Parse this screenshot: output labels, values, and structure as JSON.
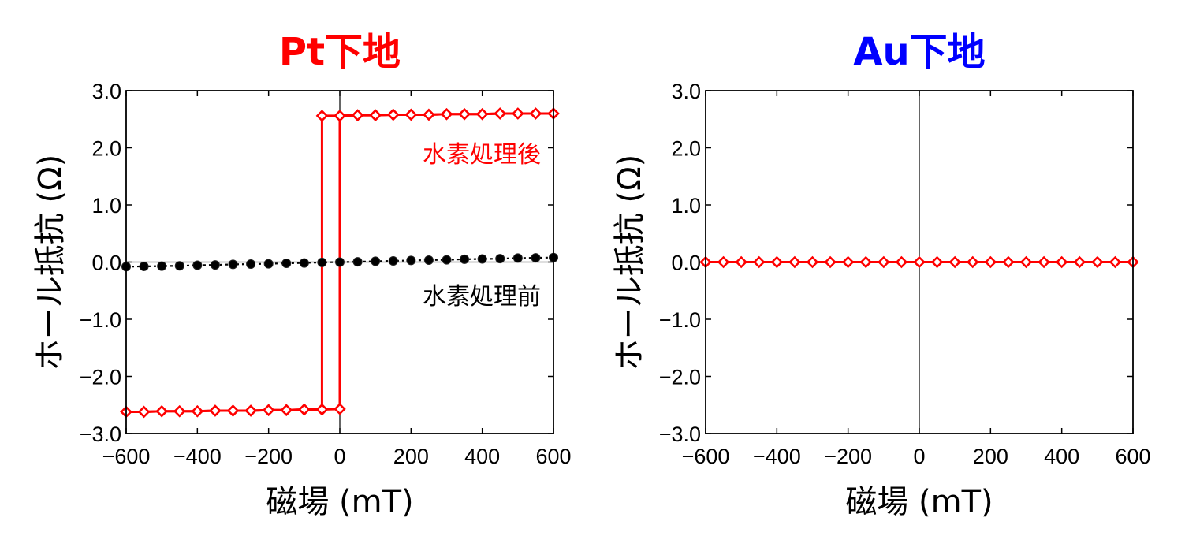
{
  "chart_data": [
    {
      "type": "line",
      "title": "Pt下地",
      "title_color": "#ff0000",
      "xlabel": "磁場 (mT)",
      "ylabel": "ホール抵抗 (Ω)",
      "xlim": [
        -600,
        600
      ],
      "ylim": [
        -3.0,
        3.0
      ],
      "xticks": [
        -600,
        -400,
        -200,
        0,
        200,
        400,
        600
      ],
      "xtick_labels": [
        "−600",
        "−400",
        "−200",
        "0",
        "200",
        "400",
        "600"
      ],
      "yticks": [
        3.0,
        2.0,
        1.0,
        0.0,
        -1.0,
        -2.0,
        -3.0
      ],
      "ytick_labels": [
        "3.0",
        "2.0",
        "1.0",
        "0.0",
        "−1.0",
        "−2.0",
        "−3.0"
      ],
      "grid": false,
      "annotations": [
        {
          "text": "水素処理後",
          "color": "#ff0000"
        },
        {
          "text": "水素処理前",
          "color": "#000000"
        }
      ],
      "series": [
        {
          "color": "#ff0000",
          "marker": "diamond-open",
          "sweep_up": {
            "x": [
              -600,
              -550,
              -500,
              -450,
              -400,
              -350,
              -300,
              -250,
              -200,
              -150,
              -100,
              -50,
              0,
              0,
              50,
              100,
              150,
              200,
              250,
              300,
              350,
              400,
              450,
              500,
              550,
              600
            ],
            "y": [
              -2.62,
              -2.62,
              -2.61,
              -2.61,
              -2.61,
              -2.6,
              -2.6,
              -2.6,
              -2.59,
              -2.59,
              -2.58,
              -2.58,
              -2.57,
              2.56,
              2.57,
              2.57,
              2.58,
              2.58,
              2.58,
              2.59,
              2.59,
              2.59,
              2.6,
              2.6,
              2.6,
              2.6
            ]
          },
          "sweep_down": {
            "x": [
              600,
              550,
              500,
              450,
              400,
              350,
              300,
              250,
              200,
              150,
              100,
              50,
              0,
              -50,
              -50,
              -100,
              -150,
              -200,
              -250,
              -300,
              -350,
              -400,
              -450,
              -500,
              -550,
              -600
            ],
            "y": [
              2.6,
              2.6,
              2.6,
              2.6,
              2.59,
              2.59,
              2.59,
              2.58,
              2.58,
              2.58,
              2.57,
              2.57,
              2.56,
              2.56,
              -2.58,
              -2.58,
              -2.59,
              -2.59,
              -2.6,
              -2.6,
              -2.6,
              -2.61,
              -2.61,
              -2.61,
              -2.62,
              -2.62
            ]
          }
        },
        {
          "color": "#000000",
          "marker": "circle-filled",
          "line": "dotted",
          "x": [
            -600,
            -550,
            -500,
            -450,
            -400,
            -350,
            -300,
            -250,
            -200,
            -150,
            -100,
            -50,
            0,
            50,
            100,
            150,
            200,
            250,
            300,
            350,
            400,
            450,
            500,
            550,
            600
          ],
          "y": [
            -0.08,
            -0.075,
            -0.07,
            -0.065,
            -0.055,
            -0.05,
            -0.04,
            -0.035,
            -0.03,
            -0.02,
            -0.015,
            -0.005,
            0.0,
            0.005,
            0.015,
            0.02,
            0.03,
            0.035,
            0.04,
            0.05,
            0.055,
            0.06,
            0.07,
            0.075,
            0.08
          ]
        }
      ]
    },
    {
      "type": "line",
      "title": "Au下地",
      "title_color": "#0000ff",
      "xlabel": "磁場 (mT)",
      "ylabel": "ホール抵抗 (Ω)",
      "xlim": [
        -600,
        600
      ],
      "ylim": [
        -3.0,
        3.0
      ],
      "xticks": [
        -600,
        -400,
        -200,
        0,
        200,
        400,
        600
      ],
      "xtick_labels": [
        "−600",
        "−400",
        "−200",
        "0",
        "200",
        "400",
        "600"
      ],
      "yticks": [
        3.0,
        2.0,
        1.0,
        0.0,
        -1.0,
        -2.0,
        -3.0
      ],
      "ytick_labels": [
        "3.0",
        "2.0",
        "1.0",
        "0.0",
        "−1.0",
        "−2.0",
        "−3.0"
      ],
      "grid": false,
      "series": [
        {
          "color": "#ff0000",
          "marker": "diamond-open",
          "x": [
            -600,
            -550,
            -500,
            -450,
            -400,
            -350,
            -300,
            -250,
            -200,
            -150,
            -100,
            -50,
            0,
            50,
            100,
            150,
            200,
            250,
            300,
            350,
            400,
            450,
            500,
            550,
            600
          ],
          "y": [
            0,
            0,
            0,
            0,
            0,
            0,
            0,
            0,
            0,
            0,
            0,
            0,
            0,
            0,
            0,
            0,
            0,
            0,
            0,
            0,
            0,
            0,
            0,
            0,
            0
          ]
        }
      ]
    }
  ]
}
